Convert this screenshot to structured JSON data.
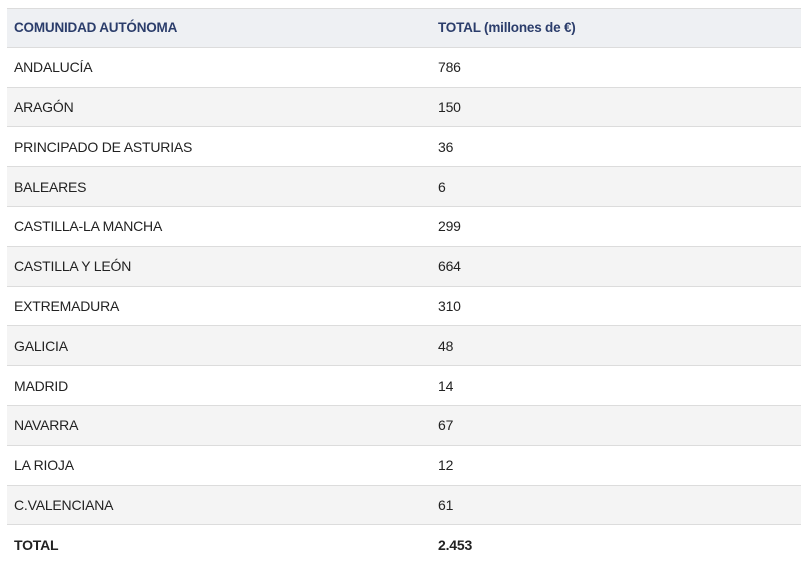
{
  "table": {
    "columns": [
      "COMUNIDAD AUTÓNOMA",
      "TOTAL (millones de €)"
    ],
    "rows": [
      [
        "ANDALUCÍA",
        "786"
      ],
      [
        "ARAGÓN",
        "150"
      ],
      [
        "PRINCIPADO DE ASTURIAS",
        "36"
      ],
      [
        "BALEARES",
        "6"
      ],
      [
        "CASTILLA-LA MANCHA",
        "299"
      ],
      [
        "CASTILLA Y LEÓN",
        "664"
      ],
      [
        "EXTREMADURA",
        "310"
      ],
      [
        "GALICIA",
        "48"
      ],
      [
        "MADRID",
        "14"
      ],
      [
        "NAVARRA",
        "67"
      ],
      [
        "LA RIOJA",
        "12"
      ],
      [
        "C.VALENCIANA",
        "61"
      ]
    ],
    "total": [
      "TOTAL",
      "2.453"
    ]
  }
}
